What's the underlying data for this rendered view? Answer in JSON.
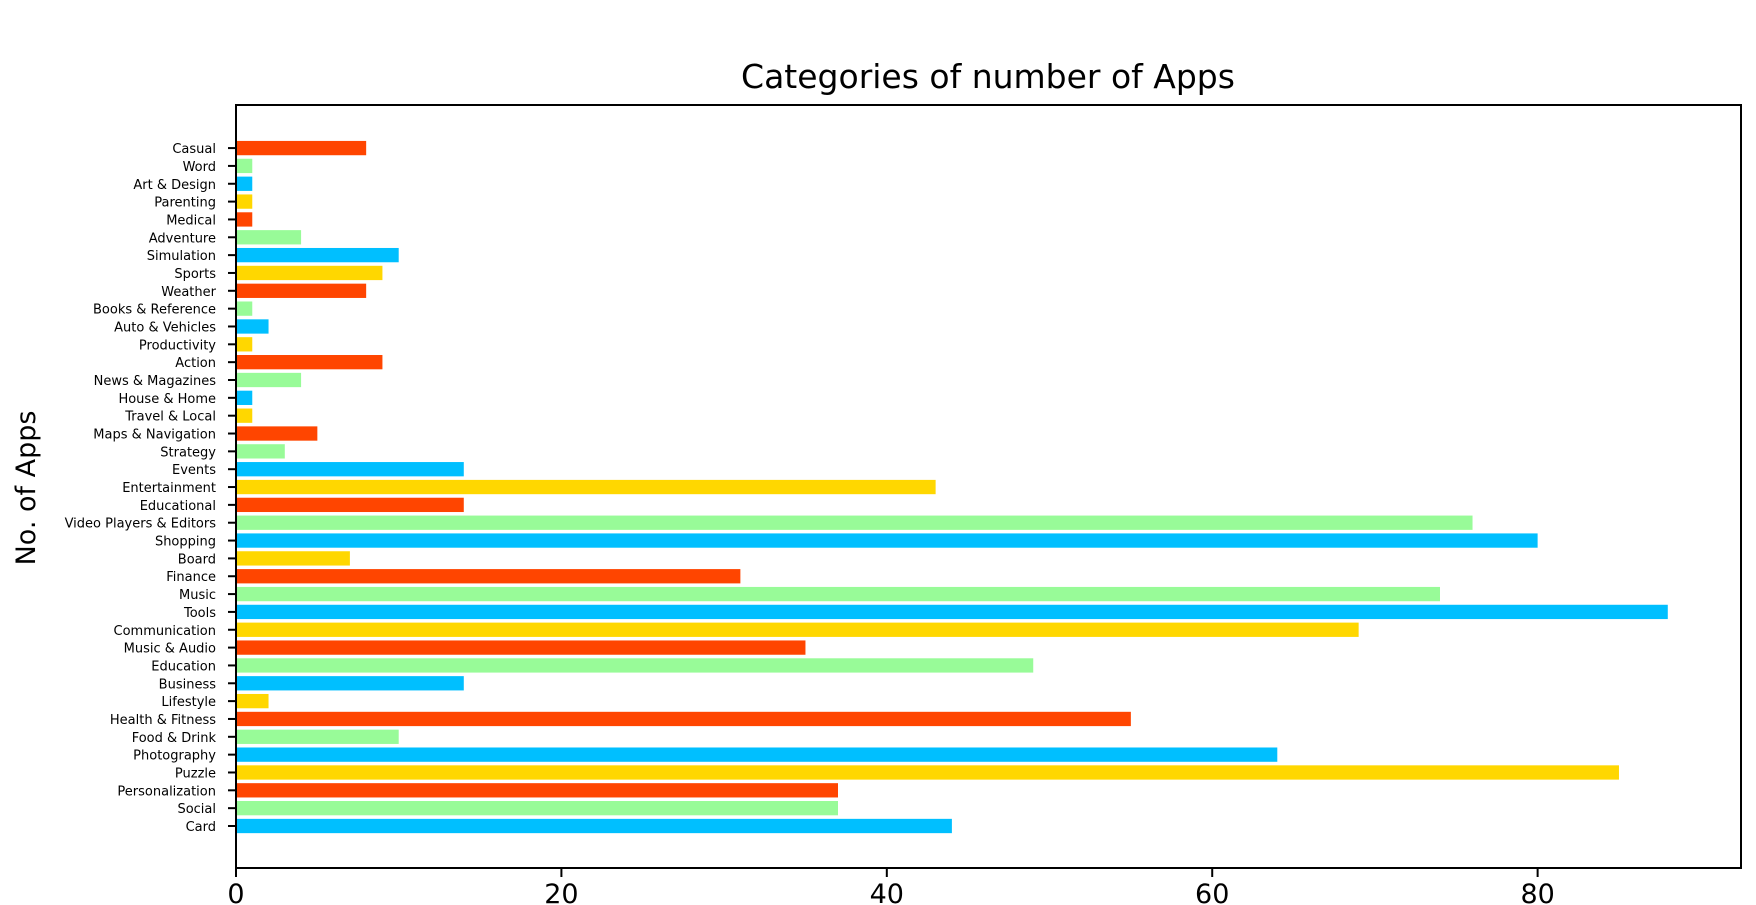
{
  "chart_data": {
    "type": "bar",
    "orientation": "horizontal",
    "title": "Categories of number of Apps",
    "xlabel": "",
    "ylabel": "No. of Apps",
    "xlim": [
      0,
      92.5
    ],
    "x_ticks": [
      0,
      20,
      40,
      60,
      80
    ],
    "grid": false,
    "legend": "none",
    "colors": [
      "#00BFFF",
      "#98FB98",
      "#FF4500",
      "#FFD700"
    ],
    "categories": [
      "Card",
      "Social",
      "Personalization",
      "Puzzle",
      "Photography",
      "Food & Drink",
      "Health & Fitness",
      "Lifestyle",
      "Business",
      "Education",
      "Music & Audio",
      "Communication",
      "Tools",
      "Music",
      "Finance",
      "Board",
      "Shopping",
      "Video Players & Editors",
      "Educational",
      "Entertainment",
      "Events",
      "Strategy",
      "Maps & Navigation",
      "Travel & Local",
      "House & Home",
      "News & Magazines",
      "Action",
      "Productivity",
      "Auto & Vehicles",
      "Books & Reference",
      "Weather",
      "Sports",
      "Simulation",
      "Adventure",
      "Medical",
      "Parenting",
      "Art & Design",
      "Word",
      "Casual"
    ],
    "values": [
      44,
      37,
      37,
      85,
      64,
      10,
      55,
      2,
      14,
      49,
      35,
      69,
      88,
      74,
      31,
      7,
      80,
      76,
      14,
      43,
      14,
      3,
      5,
      1,
      1,
      4,
      9,
      1,
      2,
      1,
      8,
      9,
      10,
      4,
      1,
      1,
      1,
      1,
      8
    ]
  }
}
